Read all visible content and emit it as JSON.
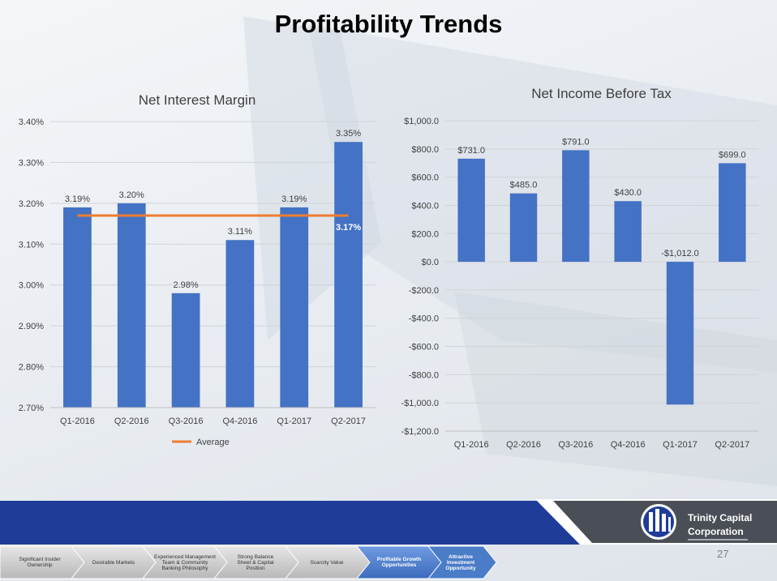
{
  "slide": {
    "title": "Profitability Trends",
    "page_number": "27",
    "logo": {
      "name_line1": "Trinity Capital",
      "name_line2": "Corporation"
    }
  },
  "nav": {
    "steps": [
      {
        "label": "Significant Insider Ownership"
      },
      {
        "label": "Desirable Markets"
      },
      {
        "label": "Experienced Management Team & Community Banking Philosophy"
      },
      {
        "label": "Strong Balance Sheet & Capital Position"
      },
      {
        "label": "Scarcity Value"
      },
      {
        "label": "Profitable Growth Opportunities"
      },
      {
        "label": "Attractive Investment Opportunity"
      }
    ]
  },
  "colors": {
    "bar": "#4472c4",
    "average": "#ed7d31",
    "band": "#1f3c99",
    "active_step": "#4a7cc7"
  },
  "chart_data": [
    {
      "type": "bar",
      "title": "Net Interest Margin",
      "categories": [
        "Q1-2016",
        "Q2-2016",
        "Q3-2016",
        "Q4-2016",
        "Q1-2017",
        "Q2-2017"
      ],
      "values": [
        3.19,
        3.2,
        2.98,
        3.11,
        3.19,
        3.35
      ],
      "data_labels": [
        "3.19%",
        "3.20%",
        "2.98%",
        "3.11%",
        "3.19%",
        "3.35%"
      ],
      "average": {
        "name": "Average",
        "value": 3.17,
        "label": "3.17%"
      },
      "ylim": [
        2.7,
        3.4
      ],
      "yticks": [
        2.7,
        2.8,
        2.9,
        3.0,
        3.1,
        3.2,
        3.3,
        3.4
      ],
      "ytick_labels": [
        "2.70%",
        "2.80%",
        "2.90%",
        "3.00%",
        "3.10%",
        "3.20%",
        "3.30%",
        "3.40%"
      ],
      "legend": {
        "position": "bottom",
        "entries": [
          "Average"
        ]
      },
      "grid": true
    },
    {
      "type": "bar",
      "title": "Net Income Before Tax",
      "categories": [
        "Q1-2016",
        "Q2-2016",
        "Q3-2016",
        "Q4-2016",
        "Q1-2017",
        "Q2-2017"
      ],
      "values": [
        731.0,
        485.0,
        791.0,
        430.0,
        -1012.0,
        699.0
      ],
      "data_labels": [
        "$731.0",
        "$485.0",
        "$791.0",
        "$430.0",
        "-$1,012.0",
        "$699.0"
      ],
      "ylim": [
        -1200,
        1000
      ],
      "yticks": [
        -1200,
        -1000,
        -800,
        -600,
        -400,
        -200,
        0,
        200,
        400,
        600,
        800,
        1000
      ],
      "ytick_labels": [
        "-$1,200.0",
        "-$1,000.0",
        "-$800.0",
        "-$600.0",
        "-$400.0",
        "-$200.0",
        "$0.0",
        "$200.0",
        "$400.0",
        "$600.0",
        "$800.0",
        "$1,000.0"
      ],
      "grid": true
    }
  ]
}
